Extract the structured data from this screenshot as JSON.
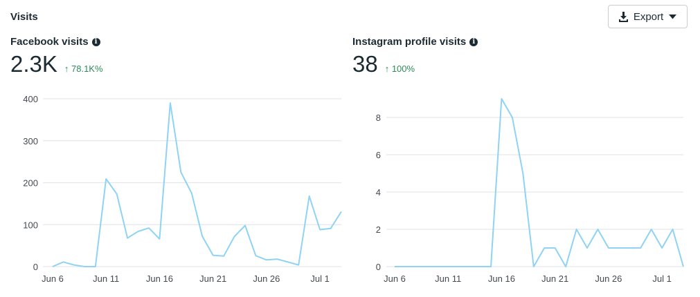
{
  "section": {
    "title": "Visits"
  },
  "export": {
    "label": "Export",
    "icon": "download-icon",
    "caret": "caret-down-icon"
  },
  "metrics": [
    {
      "title": "Facebook visits",
      "value": "2.3K",
      "delta": "↑ 78.1K%",
      "delta_color": "#2e8b57"
    },
    {
      "title": "Instagram profile visits",
      "value": "38",
      "delta": "↑ 100%",
      "delta_color": "#2e8b57"
    }
  ],
  "chart_data": [
    {
      "type": "line",
      "title": "Facebook visits",
      "x": [
        "Jun 6",
        "Jun 7",
        "Jun 8",
        "Jun 9",
        "Jun 10",
        "Jun 11",
        "Jun 12",
        "Jun 13",
        "Jun 14",
        "Jun 15",
        "Jun 16",
        "Jun 17",
        "Jun 18",
        "Jun 19",
        "Jun 20",
        "Jun 21",
        "Jun 22",
        "Jun 23",
        "Jun 24",
        "Jun 25",
        "Jun 26",
        "Jun 27",
        "Jun 28",
        "Jun 29",
        "Jun 30",
        "Jul 1",
        "Jul 2",
        "Jul 3"
      ],
      "values": [
        0,
        11,
        4,
        0,
        0,
        209,
        173,
        68,
        84,
        92,
        66,
        390,
        225,
        175,
        72,
        27,
        25,
        72,
        98,
        26,
        16,
        18,
        11,
        4,
        168,
        88,
        91,
        131
      ],
      "xticks": [
        "Jun 6",
        "Jun 11",
        "Jun 16",
        "Jun 21",
        "Jun 26",
        "Jul 1"
      ],
      "yticks": [
        0,
        100,
        200,
        300,
        400
      ],
      "ylim": [
        0,
        400
      ],
      "grid": true,
      "color": "#8ed3f5"
    },
    {
      "type": "line",
      "title": "Instagram profile visits",
      "x": [
        "Jun 6",
        "Jun 7",
        "Jun 8",
        "Jun 9",
        "Jun 10",
        "Jun 11",
        "Jun 12",
        "Jun 13",
        "Jun 14",
        "Jun 15",
        "Jun 16",
        "Jun 17",
        "Jun 18",
        "Jun 19",
        "Jun 20",
        "Jun 21",
        "Jun 22",
        "Jun 23",
        "Jun 24",
        "Jun 25",
        "Jun 26",
        "Jun 27",
        "Jun 28",
        "Jun 29",
        "Jun 30",
        "Jul 1",
        "Jul 2",
        "Jul 3"
      ],
      "values": [
        0,
        0,
        0,
        0,
        0,
        0,
        0,
        0,
        0,
        0,
        9,
        8,
        5,
        0,
        1,
        1,
        0,
        2,
        1,
        2,
        1,
        1,
        1,
        1,
        2,
        1,
        2,
        0
      ],
      "xticks": [
        "Jun 6",
        "Jun 11",
        "Jun 16",
        "Jun 21",
        "Jun 26",
        "Jul 1"
      ],
      "yticks": [
        0,
        2,
        4,
        6,
        8
      ],
      "ylim": [
        0,
        9
      ],
      "grid": true,
      "color": "#8ed3f5"
    }
  ]
}
